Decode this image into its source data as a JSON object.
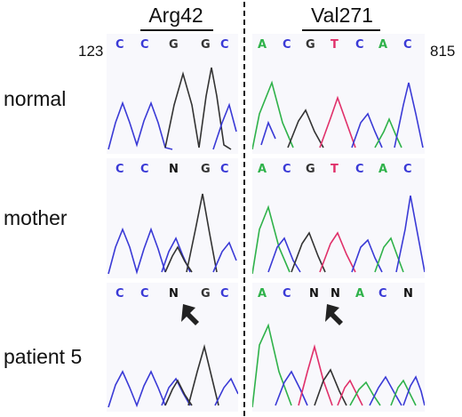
{
  "headers": {
    "left": "Arg42",
    "right": "Val271"
  },
  "positions": {
    "left": "123",
    "right": "815"
  },
  "colors": {
    "A": "#2fb24a",
    "C": "#3a3ad6",
    "G": "#333333",
    "T": "#e0306a",
    "N": "#111111"
  },
  "rows": [
    {
      "label": "normal",
      "left_bases": [
        "C",
        "C",
        "G",
        "G",
        "C"
      ],
      "right_bases": [
        "A",
        "C",
        "G",
        "T",
        "C",
        "A",
        "C"
      ],
      "arrow_left": false,
      "arrow_right": false
    },
    {
      "label": "mother",
      "left_bases": [
        "C",
        "C",
        "N",
        "G",
        "C"
      ],
      "right_bases": [
        "A",
        "C",
        "G",
        "T",
        "C",
        "A",
        "C"
      ],
      "arrow_left": false,
      "arrow_right": false
    },
    {
      "label": "patient 5",
      "left_bases": [
        "C",
        "C",
        "N",
        "G",
        "C"
      ],
      "right_bases": [
        "A",
        "C",
        "N",
        "N",
        "A",
        "C",
        "N"
      ],
      "arrow_left": true,
      "arrow_right": true
    }
  ]
}
